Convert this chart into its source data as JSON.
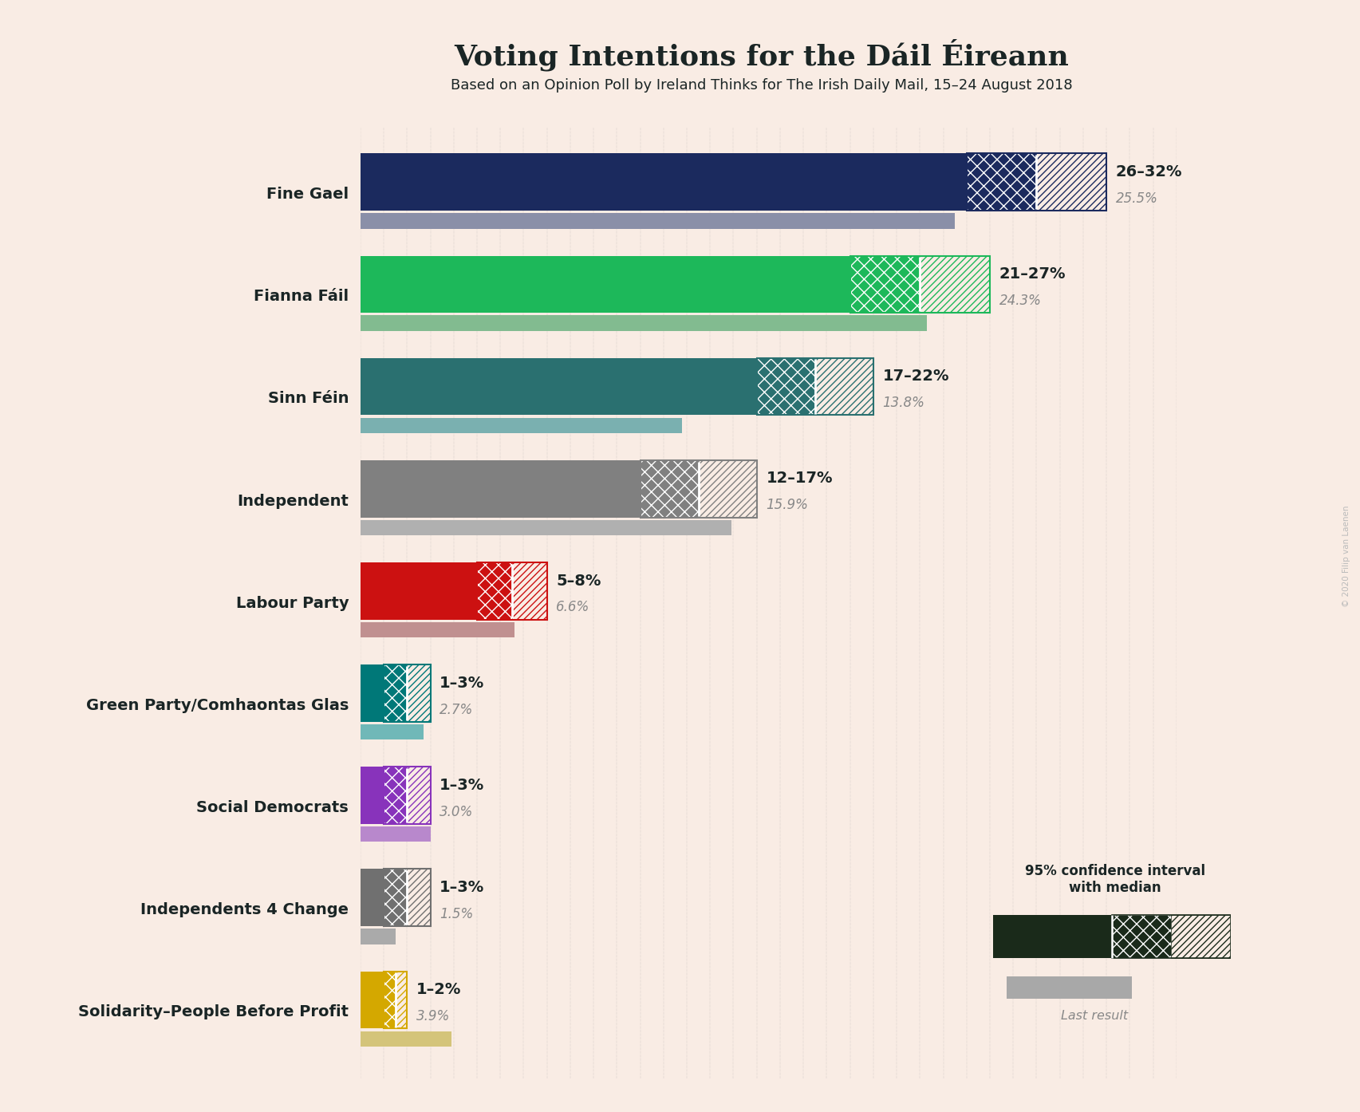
{
  "title": "Voting Intentions for the Dáil Éireann",
  "subtitle": "Based on an Opinion Poll by Ireland Thinks for The Irish Daily Mail, 15–24 August 2018",
  "background_color": "#f9ece4",
  "parties": [
    {
      "name": "Fine Gael",
      "ci_low": 26,
      "ci_high": 32,
      "median": 29,
      "last": 25.5,
      "color": "#1b2a5e",
      "last_color": "#8a8fa8"
    },
    {
      "name": "Fianna Fáil",
      "ci_low": 21,
      "ci_high": 27,
      "median": 24,
      "last": 24.3,
      "color": "#1db85a",
      "last_color": "#82bb90"
    },
    {
      "name": "Sinn Féin",
      "ci_low": 17,
      "ci_high": 22,
      "median": 19.5,
      "last": 13.8,
      "color": "#2a7070",
      "last_color": "#7ab0b0"
    },
    {
      "name": "Independent",
      "ci_low": 12,
      "ci_high": 17,
      "median": 14.5,
      "last": 15.9,
      "color": "#808080",
      "last_color": "#b0b0b0"
    },
    {
      "name": "Labour Party",
      "ci_low": 5,
      "ci_high": 8,
      "median": 6.5,
      "last": 6.6,
      "color": "#cc1111",
      "last_color": "#c09090"
    },
    {
      "name": "Green Party/Comhaontas Glas",
      "ci_low": 1,
      "ci_high": 3,
      "median": 2.0,
      "last": 2.7,
      "color": "#007878",
      "last_color": "#70b8b8"
    },
    {
      "name": "Social Democrats",
      "ci_low": 1,
      "ci_high": 3,
      "median": 2.0,
      "last": 3.0,
      "color": "#8833bb",
      "last_color": "#b888cc"
    },
    {
      "name": "Independents 4 Change",
      "ci_low": 1,
      "ci_high": 3,
      "median": 2.0,
      "last": 1.5,
      "color": "#707070",
      "last_color": "#aaaaaa"
    },
    {
      "name": "Solidarity–People Before Profit",
      "ci_low": 1,
      "ci_high": 2,
      "median": 1.5,
      "last": 3.9,
      "color": "#d4a800",
      "last_color": "#d4c47a"
    }
  ],
  "label_range": [
    "26–32%",
    "21–27%",
    "17–22%",
    "12–17%",
    "5–8%",
    "1–3%",
    "1–3%",
    "1–3%",
    "1–2%"
  ],
  "label_last": [
    "25.5%",
    "24.3%",
    "13.8%",
    "15.9%",
    "6.6%",
    "2.7%",
    "3.0%",
    "1.5%",
    "3.9%"
  ],
  "xlim": [
    0,
    35
  ],
  "watermark": "© 2020 Filip van Laenen",
  "legend_ci_label": "95% confidence interval\nwith median",
  "legend_last_label": "Last result"
}
